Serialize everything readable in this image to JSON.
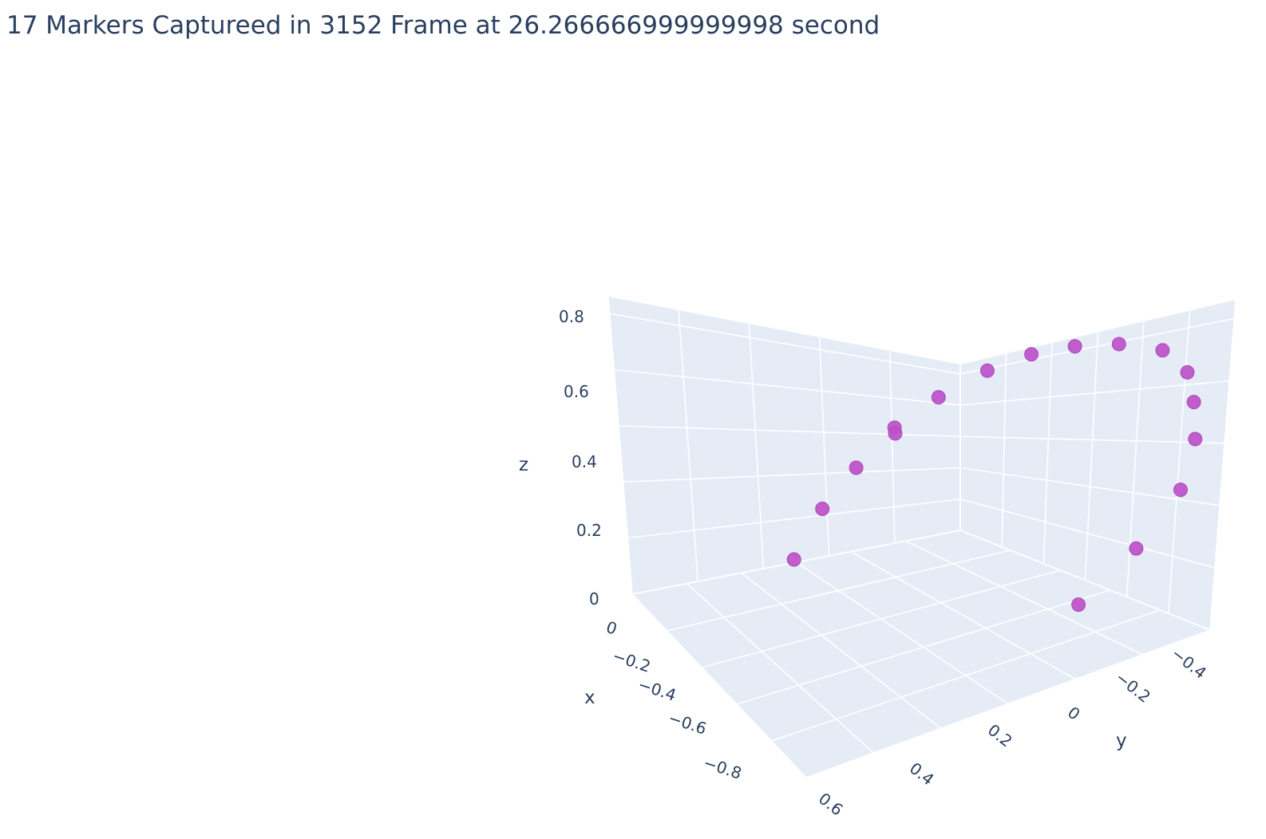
{
  "page_title": "17 Markers Captureed in 3152 Frame at 26.266666999999998 second",
  "chart_data": {
    "type": "scatter3d",
    "title": "17 Markers Captureed in 3152 Frame at 26.266666999999998 second",
    "axes": {
      "x": {
        "label": "x",
        "ticks": [
          "0",
          "−0.2",
          "−0.4",
          "−0.6",
          "−0.8"
        ]
      },
      "y": {
        "label": "y",
        "ticks": [
          "−0.4",
          "−0.2",
          "0",
          "0.2",
          "0.4",
          "0.6"
        ]
      },
      "z": {
        "label": "z",
        "ticks": [
          "0",
          "0.2",
          "0.4",
          "0.6",
          "0.8"
        ]
      }
    },
    "marker_color": "#bc50c8",
    "pane_color": "#e5ecf6",
    "grid_color": "#ffffff",
    "points": [
      {
        "x": -0.9,
        "y": 0.43,
        "z": 0.4
      },
      {
        "x": -0.93,
        "y": 0.38,
        "z": 0.55
      },
      {
        "x": -0.95,
        "y": 0.32,
        "z": 0.66
      },
      {
        "x": -0.96,
        "y": 0.25,
        "z": 0.76
      },
      {
        "x": -0.96,
        "y": 0.25,
        "z": 0.74
      },
      {
        "x": -0.96,
        "y": 0.17,
        "z": 0.82
      },
      {
        "x": -0.95,
        "y": 0.08,
        "z": 0.86
      },
      {
        "x": -0.94,
        "y": 0.0,
        "z": 0.87
      },
      {
        "x": -0.92,
        "y": -0.08,
        "z": 0.85
      },
      {
        "x": -0.9,
        "y": -0.16,
        "z": 0.81
      },
      {
        "x": -0.87,
        "y": -0.24,
        "z": 0.74
      },
      {
        "x": -0.82,
        "y": -0.29,
        "z": 0.63
      },
      {
        "x": -0.76,
        "y": -0.31,
        "z": 0.51
      },
      {
        "x": -0.7,
        "y": -0.32,
        "z": 0.37
      },
      {
        "x": -0.6,
        "y": -0.31,
        "z": 0.19
      },
      {
        "x": -0.45,
        "y": -0.26,
        "z": 0.0
      },
      {
        "x": -0.25,
        "y": -0.2,
        "z": -0.18
      }
    ]
  }
}
